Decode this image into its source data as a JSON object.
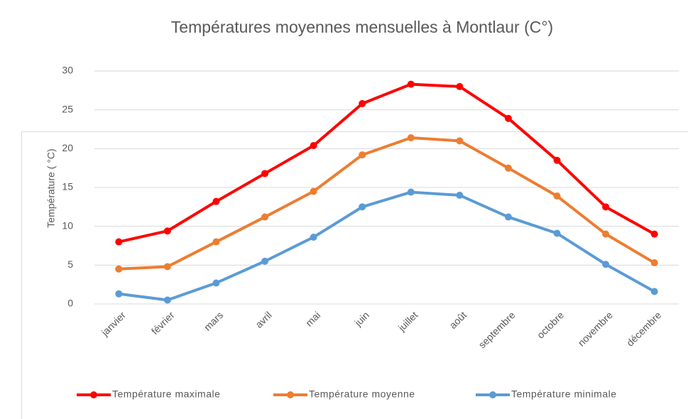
{
  "chart_data": {
    "type": "line",
    "title": "Températures moyennes mensuelles à Montlaur (C°)",
    "y_label": "Température ( °C)",
    "categories": [
      "janvier",
      "février",
      "mars",
      "avril",
      "mai",
      "juin",
      "juillet",
      "août",
      "septembre",
      "octobre",
      "novembre",
      "décembre"
    ],
    "series": [
      {
        "name": "Température maximale",
        "color": "#ff0000",
        "values": [
          8.0,
          9.4,
          13.2,
          16.8,
          20.4,
          25.8,
          28.3,
          28.0,
          23.9,
          18.5,
          12.5,
          9.0
        ]
      },
      {
        "name": "Température moyenne",
        "color": "#ed7d31",
        "values": [
          4.5,
          4.8,
          8.0,
          11.2,
          14.5,
          19.2,
          21.4,
          21.0,
          17.5,
          13.9,
          9.0,
          5.3
        ]
      },
      {
        "name": "Température minimale",
        "color": "#5b9bd5",
        "values": [
          1.3,
          0.5,
          2.7,
          5.5,
          8.6,
          12.5,
          14.4,
          14.0,
          11.2,
          9.1,
          5.1,
          1.6
        ]
      }
    ],
    "ylim": [
      0,
      30
    ],
    "yticks": [
      0,
      5,
      10,
      15,
      20,
      25,
      30
    ],
    "grid": true,
    "legend": "bottom"
  }
}
